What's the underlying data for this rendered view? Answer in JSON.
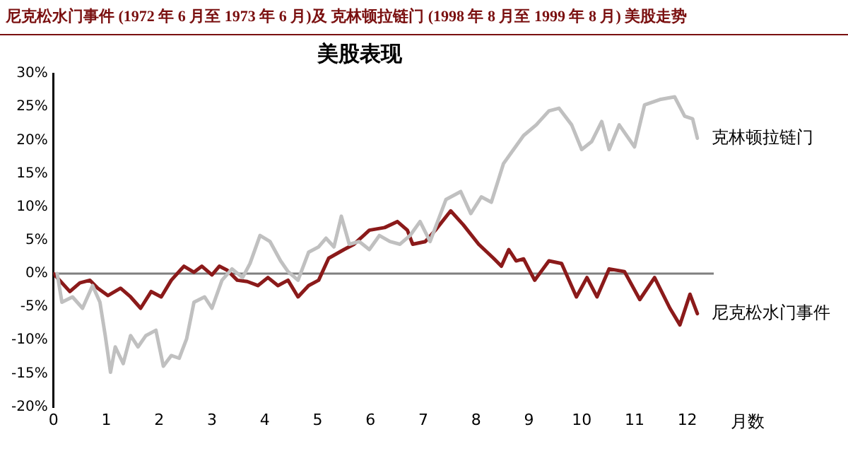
{
  "chart_data": {
    "type": "line",
    "title": "美股表现",
    "subtitle": "尼克松水门事件 (1972 年 6 月至 1973 年 6 月)及 克林顿拉链门 (1998 年 8 月至 1999 年 8 月) 美股走势",
    "xlabel": "月数",
    "xlim": [
      0,
      12.5
    ],
    "xticks": [
      0,
      1,
      2,
      3,
      4,
      5,
      6,
      7,
      8,
      9,
      10,
      11,
      12
    ],
    "ylim": [
      -20,
      30
    ],
    "yticks": [
      {
        "value": -20,
        "label": "-20%"
      },
      {
        "value": -15,
        "label": "-15%"
      },
      {
        "value": -10,
        "label": "-10%"
      },
      {
        "value": -5,
        "label": "-5%"
      },
      {
        "value": 0,
        "label": "0%"
      },
      {
        "value": 5,
        "label": "5%"
      },
      {
        "value": 10,
        "label": "10%"
      },
      {
        "value": 15,
        "label": "15%"
      },
      {
        "value": 20,
        "label": "20%"
      },
      {
        "value": 25,
        "label": "25%"
      },
      {
        "value": 30,
        "label": "30%"
      }
    ],
    "grid": false,
    "legend": false,
    "marker": "none",
    "line_style": "solid",
    "ref_lines": [
      {
        "axis": "y",
        "value": 0,
        "label": null,
        "color": "#808080"
      }
    ],
    "series": [
      {
        "name": "克林顿拉链门",
        "color": "#c0c0c0",
        "x": [
          0.07,
          0.16,
          0.36,
          0.55,
          0.74,
          0.88,
          0.98,
          1.08,
          1.17,
          1.32,
          1.46,
          1.6,
          1.75,
          1.94,
          2.08,
          2.23,
          2.38,
          2.52,
          2.66,
          2.86,
          3.0,
          3.19,
          3.38,
          3.58,
          3.72,
          3.91,
          4.1,
          4.3,
          4.44,
          4.63,
          4.83,
          5.02,
          5.16,
          5.31,
          5.45,
          5.6,
          5.79,
          5.98,
          6.17,
          6.37,
          6.56,
          6.75,
          6.94,
          7.13,
          7.33,
          7.43,
          7.71,
          7.9,
          8.1,
          8.29,
          8.52,
          8.71,
          8.9,
          9.14,
          9.38,
          9.57,
          9.81,
          10.0,
          10.19,
          10.38,
          10.52,
          10.71,
          11.0,
          11.19,
          11.48,
          11.76,
          11.95,
          12.1,
          12.19
        ],
        "values": [
          0,
          -4.3,
          -3.5,
          -5.2,
          -1.8,
          -4.3,
          -9.3,
          -14.8,
          -11,
          -13.5,
          -9.3,
          -11,
          -9.3,
          -8.5,
          -13.9,
          -12.3,
          -12.7,
          -9.8,
          -4.3,
          -3.5,
          -5.2,
          -1,
          0.7,
          -0.6,
          1.5,
          5.7,
          4.8,
          1.9,
          0.3,
          -1,
          3.2,
          4,
          5.3,
          4,
          8.6,
          4.4,
          4.8,
          3.6,
          5.7,
          4.8,
          4.4,
          5.7,
          7.8,
          4.8,
          9,
          11.1,
          12.3,
          9,
          11.5,
          10.7,
          16.5,
          18.6,
          20.7,
          22.3,
          24.4,
          24.8,
          22.3,
          18.6,
          19.8,
          22.8,
          18.6,
          22.3,
          19,
          25.3,
          26.1,
          26.5,
          23.6,
          23.2,
          20.3
        ]
      },
      {
        "name": "尼克松水门事件",
        "color": "#8b1a1a",
        "x": [
          0,
          0.31,
          0.5,
          0.69,
          0.84,
          1.03,
          1.27,
          1.46,
          1.65,
          1.85,
          2.04,
          2.23,
          2.47,
          2.66,
          2.81,
          3.0,
          3.14,
          3.29,
          3.48,
          3.67,
          3.87,
          4.06,
          4.25,
          4.44,
          4.63,
          4.83,
          5.02,
          5.21,
          5.5,
          5.69,
          5.98,
          6.27,
          6.51,
          6.7,
          6.8,
          7.04,
          7.23,
          7.52,
          7.76,
          8.05,
          8.33,
          8.48,
          8.62,
          8.76,
          8.9,
          9.11,
          9.38,
          9.62,
          9.9,
          10.1,
          10.29,
          10.52,
          10.81,
          11.1,
          11.38,
          11.67,
          11.86,
          12.05,
          12.19
        ],
        "values": [
          0,
          -2.7,
          -1.4,
          -1,
          -2.2,
          -3.3,
          -2.2,
          -3.5,
          -5.2,
          -2.7,
          -3.5,
          -1,
          1.1,
          0.2,
          1.1,
          -0.2,
          1.1,
          0.5,
          -1,
          -1.2,
          -1.8,
          -0.6,
          -1.8,
          -1,
          -3.5,
          -1.8,
          -1,
          2.3,
          3.6,
          4.4,
          6.5,
          6.9,
          7.8,
          6.5,
          4.4,
          4.8,
          6.5,
          9.4,
          7.3,
          4.4,
          2.3,
          1.1,
          3.6,
          1.9,
          2.2,
          -1,
          1.9,
          1.5,
          -3.5,
          -0.6,
          -3.5,
          0.7,
          0.3,
          -3.9,
          -0.6,
          -5.2,
          -7.7,
          -3.1,
          -6
        ]
      }
    ]
  }
}
